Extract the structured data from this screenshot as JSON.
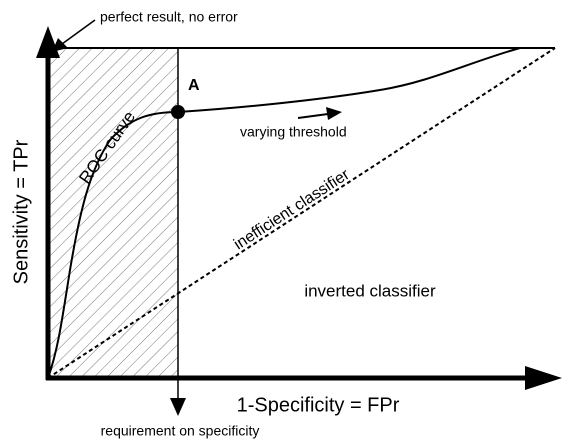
{
  "labels": {
    "perfect": "perfect result, no error",
    "point": "A",
    "curve": "ROC curve",
    "threshold": "varying threshold",
    "inefficient": "inefficient classifier",
    "inverted": "inverted classifier",
    "y_axis": "Sensitivity = TPr",
    "x_axis": "1-Specificity = FPr",
    "requirement": "requirement on specificity"
  }
}
